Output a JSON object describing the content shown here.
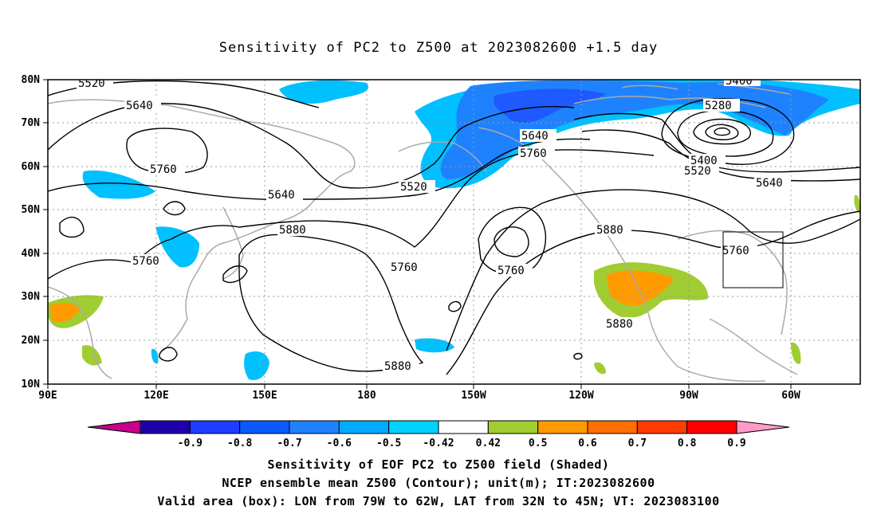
{
  "title": "Sensitivity of PC2 to Z500 at 2023082600 +1.5 day",
  "lat_ticks": [
    "80N",
    "70N",
    "60N",
    "50N",
    "40N",
    "30N",
    "20N",
    "10N"
  ],
  "lon_ticks": [
    "90E",
    "120E",
    "150E",
    "180",
    "150W",
    "120W",
    "90W",
    "60W"
  ],
  "contour_labels": {
    "c1": "5520",
    "c2": "5640",
    "c3": "5760",
    "c4": "5640",
    "c5": "5520",
    "c6": "5640",
    "c7": "5760",
    "c8": "5880",
    "c9": "5760",
    "c10": "5760",
    "c11": "5880",
    "c12": "5880",
    "c13": "5400",
    "c14": "5280",
    "c15": "5400",
    "c16": "5520",
    "c17": "5640",
    "c18": "5760",
    "c19": "5760",
    "c20": "5880"
  },
  "colorbar": {
    "labels": [
      "-0.9",
      "-0.8",
      "-0.7",
      "-0.6",
      "-0.5",
      "-0.42",
      "0.42",
      "0.5",
      "0.6",
      "0.7",
      "0.8",
      "0.9"
    ],
    "colors": [
      "#c8008c",
      "#1e00aa",
      "#1e3cff",
      "#0a5aff",
      "#1e82ff",
      "#00aaff",
      "#00d2ff",
      "#ffffff",
      "#a0cd32",
      "#ff9b00",
      "#ff6e00",
      "#ff3c00",
      "#ff0000",
      "#ff9bc8"
    ]
  },
  "map_colors": {
    "coast": "#aaaaaa",
    "contour": "#000000",
    "neg_light": "#00c0ff",
    "neg_mid": "#1e82ff",
    "neg_dark": "#1e5aff",
    "pos_green": "#a0cd32",
    "pos_orange": "#ff9b00",
    "pos_dark_orange": "#ff6e00"
  },
  "captions": {
    "line1": "Sensitivity of EOF PC2 to Z500 field (Shaded)",
    "line2": "NCEP ensemble mean Z500 (Contour); unit(m); IT:2023082600",
    "line3": "Valid area (box): LON from 79W to 62W, LAT from 32N to 45N; VT: 2023083100"
  }
}
